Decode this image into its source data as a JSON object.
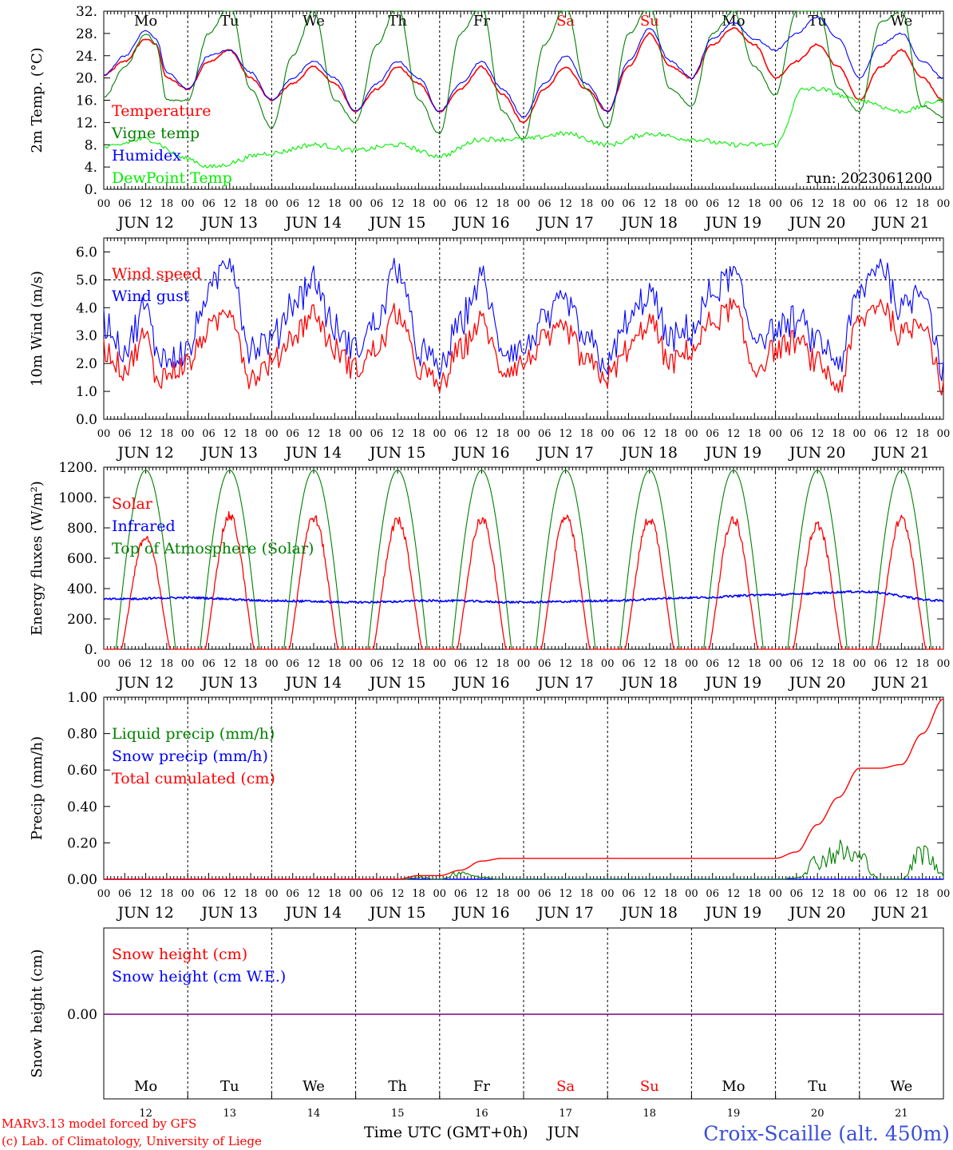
{
  "run_label": "run: 2023061200",
  "footer": {
    "model": "MARv3.13 model forced by GFS",
    "credit": "(c) Lab. of Climatology, University of Liege",
    "axis_title": "Time UTC (GMT+0h)",
    "month": "JUN",
    "station": "Croix-Scaille (alt. 450m)"
  },
  "days": [
    {
      "abbr": "Mo",
      "date": "JUN 12",
      "num": "12",
      "weekend": false
    },
    {
      "abbr": "Tu",
      "date": "JUN 13",
      "num": "13",
      "weekend": false
    },
    {
      "abbr": "We",
      "date": "JUN 14",
      "num": "14",
      "weekend": false
    },
    {
      "abbr": "Th",
      "date": "JUN 15",
      "num": "15",
      "weekend": false
    },
    {
      "abbr": "Fr",
      "date": "JUN 16",
      "num": "16",
      "weekend": false
    },
    {
      "abbr": "Sa",
      "date": "JUN 17",
      "num": "17",
      "weekend": true
    },
    {
      "abbr": "Su",
      "date": "JUN 18",
      "num": "18",
      "weekend": true
    },
    {
      "abbr": "Mo",
      "date": "JUN 19",
      "num": "19",
      "weekend": false
    },
    {
      "abbr": "Tu",
      "date": "JUN 20",
      "num": "20",
      "weekend": false
    },
    {
      "abbr": "We",
      "date": "JUN 21",
      "num": "21",
      "weekend": false
    }
  ],
  "hour_ticks": [
    "00",
    "06",
    "12",
    "18"
  ],
  "colors": {
    "red": "#ff0000",
    "green": "#008000",
    "blue": "#0000ff",
    "lime": "#00ee00",
    "purple": "#7f007f",
    "station": "#3a4fd8"
  },
  "chart_data": [
    {
      "type": "line",
      "ylabel": "2m Temp. (°C)",
      "ylim": [
        0,
        32
      ],
      "yticks": [
        "0.",
        "4.",
        "8.",
        "12.",
        "16.",
        "20.",
        "24.",
        "28.",
        "32."
      ],
      "x_unit": "hours since JUN 12 00 UTC",
      "legend_placement": "left",
      "series": [
        {
          "name": "Temperature",
          "color": "red",
          "x": [
            0,
            6,
            12,
            15,
            18,
            24,
            30,
            36,
            42,
            48,
            54,
            60,
            66,
            72,
            78,
            84,
            90,
            96,
            102,
            108,
            114,
            120,
            126,
            132,
            138,
            144,
            150,
            156,
            162,
            168,
            174,
            180,
            186,
            192,
            198,
            204,
            210,
            216,
            222,
            228,
            234,
            240
          ],
          "values": [
            20.5,
            23,
            27,
            26,
            20,
            18,
            23,
            25,
            20,
            16,
            19,
            22,
            19,
            14,
            18,
            22,
            19,
            14,
            18,
            22,
            17,
            12,
            18,
            22,
            18,
            14,
            22,
            28,
            22,
            20,
            26,
            29,
            26,
            20,
            23,
            26,
            22,
            16,
            22,
            25,
            20,
            16
          ]
        },
        {
          "name": "Vigne temp",
          "color": "green",
          "x": [
            0,
            6,
            12,
            15,
            18,
            24,
            30,
            36,
            42,
            48,
            54,
            60,
            66,
            72,
            78,
            84,
            90,
            96,
            102,
            108,
            114,
            120,
            126,
            132,
            138,
            144,
            150,
            156,
            162,
            168,
            174,
            180,
            186,
            192,
            198,
            204,
            210,
            216,
            222,
            228,
            234,
            240
          ],
          "values": [
            16.5,
            22,
            28,
            26,
            16,
            16,
            28,
            33,
            18,
            11,
            24,
            32,
            16,
            12,
            26,
            33,
            16,
            10,
            28,
            33,
            14,
            9,
            26,
            33,
            18,
            11,
            28,
            33,
            18,
            15,
            28,
            32,
            22,
            17,
            32,
            33,
            18,
            14,
            30,
            32,
            15,
            13
          ]
        },
        {
          "name": "Humidex",
          "color": "blue",
          "x": [
            0,
            6,
            12,
            15,
            18,
            24,
            30,
            36,
            42,
            48,
            54,
            60,
            66,
            72,
            78,
            84,
            90,
            96,
            102,
            108,
            114,
            120,
            126,
            132,
            138,
            144,
            150,
            156,
            162,
            168,
            174,
            180,
            186,
            192,
            198,
            204,
            210,
            216,
            222,
            228,
            234,
            240
          ],
          "values": [
            20.5,
            24,
            28.5,
            27,
            21,
            18,
            24,
            25,
            21,
            16,
            20,
            23,
            20,
            14,
            19,
            23,
            20,
            14,
            19,
            23,
            18,
            13,
            19,
            24,
            19,
            14,
            23,
            29,
            23,
            20,
            27,
            30,
            27,
            25,
            28,
            31,
            27,
            20,
            26,
            28,
            23,
            20
          ]
        },
        {
          "name": "DewPoint Temp",
          "color": "lime",
          "x": [
            0,
            12,
            24,
            30,
            48,
            60,
            72,
            84,
            96,
            108,
            120,
            132,
            144,
            156,
            168,
            180,
            192,
            200,
            204,
            216,
            228,
            240
          ],
          "values": [
            7.5,
            9,
            5.5,
            4,
            6.5,
            8,
            7,
            8,
            6,
            9,
            9,
            10,
            8,
            10,
            9,
            8,
            8,
            18,
            18,
            16,
            14,
            16
          ]
        }
      ]
    },
    {
      "type": "line",
      "ylabel": "10m Wind (m/s)",
      "ylim": [
        0,
        6.5
      ],
      "yticks": [
        "0.0",
        "1.0",
        "2.0",
        "3.0",
        "4.0",
        "5.0",
        "6.0"
      ],
      "reference_line": 5.0,
      "x_unit": "hours since JUN 12 00 UTC",
      "legend_placement": "left",
      "series": [
        {
          "name": "Wind speed",
          "color": "red",
          "x": [
            0,
            6,
            12,
            15,
            18,
            24,
            30,
            36,
            42,
            48,
            54,
            60,
            66,
            72,
            78,
            84,
            90,
            96,
            102,
            108,
            114,
            120,
            126,
            132,
            138,
            144,
            150,
            156,
            162,
            168,
            174,
            180,
            186,
            192,
            198,
            204,
            210,
            216,
            222,
            228,
            234,
            240
          ],
          "values": [
            2.5,
            1.8,
            3.0,
            1.5,
            1.6,
            2.0,
            3.2,
            4.0,
            1.5,
            2.0,
            3.0,
            3.8,
            2.5,
            1.8,
            2.5,
            3.8,
            1.8,
            1.2,
            2.5,
            3.5,
            1.8,
            2.0,
            2.8,
            3.2,
            2.0,
            1.5,
            2.5,
            3.5,
            2.0,
            2.5,
            3.5,
            4.0,
            1.8,
            2.5,
            2.8,
            2.0,
            1.2,
            3.5,
            4.2,
            3.0,
            3.6,
            1.2
          ]
        },
        {
          "name": "Wind gust",
          "color": "blue",
          "x": [
            0,
            6,
            12,
            15,
            18,
            24,
            30,
            36,
            42,
            48,
            54,
            60,
            66,
            72,
            78,
            84,
            90,
            96,
            102,
            108,
            114,
            120,
            126,
            132,
            138,
            144,
            150,
            156,
            162,
            168,
            174,
            180,
            186,
            192,
            198,
            204,
            210,
            216,
            222,
            228,
            234,
            240
          ],
          "values": [
            3.5,
            2.5,
            4.0,
            2.5,
            2.2,
            2.5,
            4.5,
            5.8,
            2.5,
            2.8,
            4.2,
            5.0,
            3.2,
            2.5,
            3.5,
            5.5,
            2.5,
            1.8,
            3.5,
            5.0,
            2.5,
            2.5,
            3.5,
            4.2,
            2.8,
            2.0,
            3.5,
            4.5,
            2.8,
            3.2,
            4.5,
            5.2,
            3.0,
            3.2,
            3.5,
            2.8,
            2.0,
            4.5,
            5.6,
            4.0,
            4.8,
            1.8
          ]
        }
      ]
    },
    {
      "type": "line",
      "ylabel": "Energy fluxes (W/m²)",
      "ylim": [
        0,
        1200
      ],
      "yticks": [
        "0.",
        "200.",
        "400.",
        "600.",
        "800.",
        "1000.",
        "1200."
      ],
      "x_unit": "hours since JUN 12 00 UTC",
      "legend_placement": "left",
      "series": [
        {
          "name": "Solar",
          "color": "red",
          "daily_peak": [
            760,
            910,
            900,
            880,
            890,
            900,
            890,
            890,
            850,
            890
          ]
        },
        {
          "name": "Infrared",
          "color": "blue",
          "x": [
            0,
            24,
            48,
            72,
            96,
            120,
            144,
            168,
            192,
            216,
            240
          ],
          "values": [
            330,
            340,
            320,
            310,
            320,
            310,
            320,
            340,
            360,
            380,
            320
          ]
        },
        {
          "name": "Top of Atmosphere (Solar)",
          "color": "green",
          "daily_peak": [
            1180,
            1180,
            1180,
            1180,
            1180,
            1180,
            1180,
            1180,
            1180,
            1180
          ]
        }
      ]
    },
    {
      "type": "line",
      "ylabel": "Precip (mm/h)",
      "ylim": [
        0,
        1.0
      ],
      "yticks": [
        "0.00",
        "0.20",
        "0.40",
        "0.60",
        "0.80",
        "1.00"
      ],
      "x_unit": "hours since JUN 12 00 UTC",
      "legend_placement": "left",
      "series": [
        {
          "name": "Liquid precip (mm/h)",
          "color": "green",
          "x": [
            0,
            84,
            90,
            96,
            102,
            108,
            114,
            192,
            198,
            204,
            210,
            216,
            222,
            228,
            234,
            240
          ],
          "values": [
            0,
            0,
            0.01,
            0,
            0.04,
            0.01,
            0,
            0,
            0.01,
            0.1,
            0.15,
            0.12,
            0,
            0,
            0.15,
            0.03
          ]
        },
        {
          "name": "Snow precip (mm/h)",
          "color": "blue",
          "x": [
            0,
            240
          ],
          "values": [
            0,
            0
          ]
        },
        {
          "name": "Total cumulated (cm)",
          "color": "red",
          "x": [
            0,
            84,
            90,
            96,
            102,
            108,
            114,
            120,
            192,
            198,
            204,
            210,
            216,
            222,
            228,
            234,
            240
          ],
          "values": [
            0,
            0,
            0.02,
            0.02,
            0.05,
            0.1,
            0.115,
            0.115,
            0.115,
            0.15,
            0.3,
            0.45,
            0.61,
            0.61,
            0.63,
            0.8,
            0.99
          ]
        }
      ]
    },
    {
      "type": "line",
      "ylabel": "Snow height (cm)",
      "yticks": [
        "0.00"
      ],
      "x_unit": "hours since JUN 12 00 UTC",
      "legend_placement": "left",
      "series": [
        {
          "name": "Snow height (cm)",
          "color": "red",
          "x": [
            0,
            240
          ],
          "values": [
            0,
            0
          ]
        },
        {
          "name": "Snow height (cm W.E.)",
          "color": "blue",
          "x": [
            0,
            240
          ],
          "values": [
            0,
            0
          ]
        }
      ]
    }
  ]
}
